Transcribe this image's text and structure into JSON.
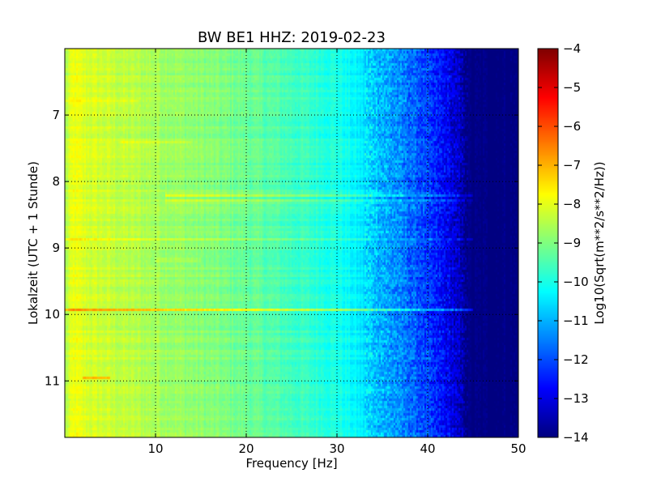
{
  "chart_data": {
    "type": "heatmap",
    "title": "BW BE1 HHZ: 2019-02-23",
    "xlabel": "Frequency [Hz]",
    "ylabel": "Lokalzeit (UTC + 1 Stunde)",
    "xlim": [
      0,
      50
    ],
    "ylim": [
      6.0,
      11.85
    ],
    "y_inverted": true,
    "x_ticks": [
      10,
      20,
      30,
      40,
      50
    ],
    "x_tick_labels": [
      "10",
      "20",
      "30",
      "40",
      "50"
    ],
    "y_ticks": [
      7,
      8,
      9,
      10,
      11
    ],
    "y_tick_labels": [
      "7",
      "8",
      "9",
      "10",
      "11"
    ],
    "grid": true,
    "colormap": "jet",
    "colorbar": {
      "label": "Log10(Sqrt(m**2/s**2/Hz))",
      "range": [
        -14,
        -4
      ],
      "ticks": [
        -4,
        -5,
        -6,
        -7,
        -8,
        -9,
        -10,
        -11,
        -12,
        -13,
        -14
      ],
      "tick_labels": [
        "−4",
        "−5",
        "−6",
        "−7",
        "−8",
        "−9",
        "−10",
        "−11",
        "−12",
        "−13",
        "−14"
      ]
    },
    "frequency_profile": {
      "frequency_hz": [
        0,
        1,
        2,
        5,
        10,
        15,
        20,
        25,
        30,
        33,
        36,
        39,
        42,
        43.5,
        44.5,
        50
      ],
      "log_level": [
        -8.6,
        -7.9,
        -8.1,
        -8.3,
        -8.6,
        -8.9,
        -9.2,
        -9.6,
        -10.0,
        -10.5,
        -11.2,
        -11.9,
        -12.8,
        -13.4,
        -14.0,
        -14.0
      ]
    },
    "events": [
      {
        "time": 8.2,
        "freq_range": [
          11,
          45
        ],
        "delta": 1.3
      },
      {
        "time": 8.3,
        "freq_range": [
          11,
          45
        ],
        "delta": 0.9
      },
      {
        "time": 8.88,
        "freq_range": [
          0,
          45
        ],
        "delta": 0.9
      },
      {
        "time": 9.93,
        "freq_range": [
          0,
          45
        ],
        "delta": 1.3
      },
      {
        "time": 9.18,
        "freq_range": [
          10,
          15
        ],
        "delta": 0.7
      },
      {
        "time": 10.95,
        "freq_range": [
          2,
          5
        ],
        "delta": 1.2
      },
      {
        "time": 7.42,
        "freq_range": [
          6,
          14
        ],
        "delta": 0.6
      },
      {
        "time": 6.8,
        "freq_range": [
          0,
          8
        ],
        "delta": 0.5
      }
    ]
  }
}
